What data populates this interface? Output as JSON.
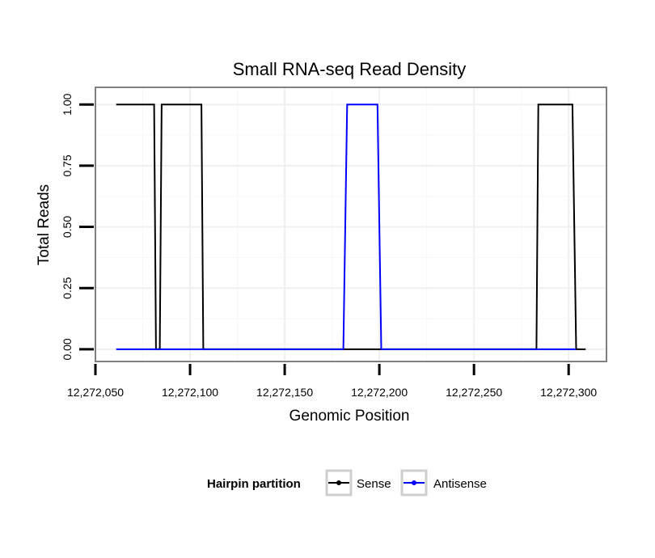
{
  "chart_data": {
    "type": "line",
    "title": "Small RNA-seq Read Density",
    "xlabel": "Genomic Position",
    "ylabel": "Total Reads",
    "xlim": [
      12272050,
      12272320
    ],
    "ylim": [
      -0.05,
      1.07
    ],
    "x_ticks": [
      12272050,
      12272100,
      12272150,
      12272200,
      12272250,
      12272300
    ],
    "x_tick_labels": [
      "12,272,050",
      "12,272,100",
      "12,272,150",
      "12,272,200",
      "12,272,250",
      "12,272,300"
    ],
    "y_ticks": [
      0,
      0.25,
      0.5,
      0.75,
      1.0
    ],
    "y_tick_labels": [
      "0.00",
      "0.25",
      "0.50",
      "0.75",
      "1.00"
    ],
    "grid": true,
    "legend": {
      "title": "Hairpin partition",
      "position": "bottom"
    },
    "series": [
      {
        "name": "Sense",
        "color": "#000000",
        "x": [
          12272061,
          12272081,
          12272082,
          12272083,
          12272084,
          12272085,
          12272106,
          12272107,
          12272183,
          12272200,
          12272283,
          12272284,
          12272302,
          12272304,
          12272309
        ],
        "y": [
          1,
          1,
          0,
          0,
          0,
          1,
          1,
          0,
          0,
          0,
          0,
          1,
          1,
          0,
          0
        ]
      },
      {
        "name": "Antisense",
        "color": "#0000ff",
        "x": [
          12272061,
          12272181,
          12272183,
          12272199,
          12272201,
          12272304
        ],
        "y": [
          0,
          0,
          1,
          1,
          0,
          0
        ]
      }
    ]
  }
}
